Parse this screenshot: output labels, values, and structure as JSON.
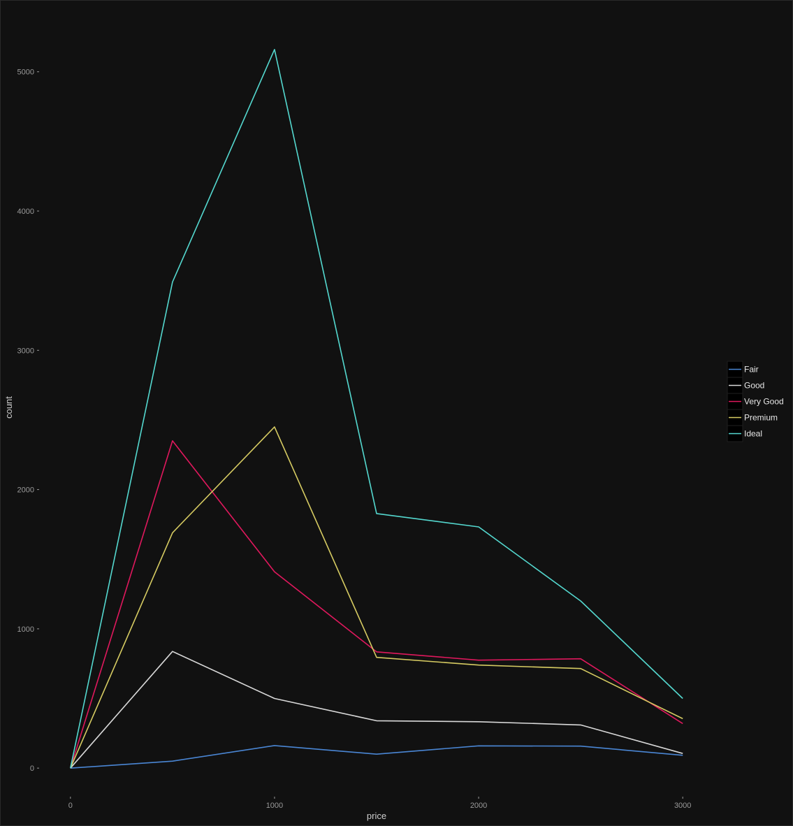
{
  "chart_data": {
    "type": "line",
    "x": [
      0,
      500,
      1000,
      1500,
      2000,
      2500,
      3000
    ],
    "xlabel": "price",
    "ylabel": "count",
    "xlim": [
      -150,
      3150
    ],
    "ylim": [
      -220,
      5400
    ],
    "xticks": [
      0,
      1000,
      2000,
      3000
    ],
    "yticks": [
      0,
      1000,
      2000,
      3000,
      4000,
      5000
    ],
    "grid": false,
    "legend_position": "right",
    "series": [
      {
        "name": "Fair",
        "color": "#4a86d4",
        "values": [
          0,
          50,
          162,
          100,
          160,
          158,
          92
        ]
      },
      {
        "name": "Good",
        "color": "#d9d9d9",
        "values": [
          0,
          838,
          500,
          340,
          333,
          310,
          105
        ]
      },
      {
        "name": "Very Good",
        "color": "#e0185d",
        "values": [
          0,
          2350,
          1410,
          835,
          775,
          785,
          320
        ]
      },
      {
        "name": "Premium",
        "color": "#d6cb62",
        "values": [
          0,
          1690,
          2450,
          795,
          740,
          715,
          355
        ]
      },
      {
        "name": "Ideal",
        "color": "#54d8cf",
        "values": [
          0,
          3490,
          5160,
          1828,
          1732,
          1200,
          500
        ]
      }
    ]
  }
}
